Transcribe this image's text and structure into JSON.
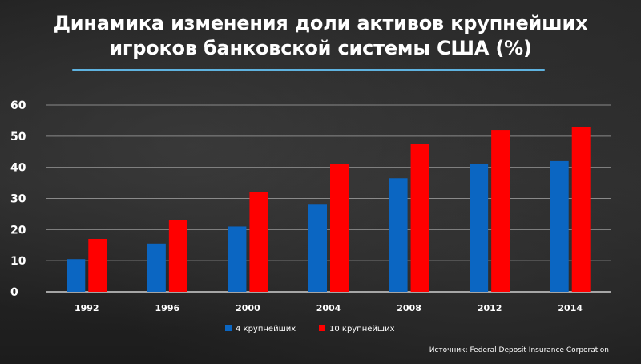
{
  "chart_data": {
    "type": "bar",
    "title_lines": [
      "Динамика изменения доли активов крупнейших",
      "игроков банковской системы США (%)"
    ],
    "categories": [
      "1992",
      "1996",
      "2000",
      "2004",
      "2008",
      "2012",
      "2014"
    ],
    "series": [
      {
        "name": "4 крупнейших",
        "color": "#0b66c2",
        "values": [
          10.5,
          15.5,
          21,
          28,
          36.5,
          41,
          42
        ]
      },
      {
        "name": "10 крупнейших",
        "color": "#ff0000",
        "values": [
          17,
          23,
          32,
          41,
          47.5,
          52,
          53
        ]
      }
    ],
    "ylim": [
      0,
      60
    ],
    "yticks": [
      0,
      10,
      20,
      30,
      40,
      50,
      60
    ],
    "grid": true,
    "legend_position": "bottom-center",
    "source": "Источник: Federal Deposit Insurance Corporation"
  }
}
